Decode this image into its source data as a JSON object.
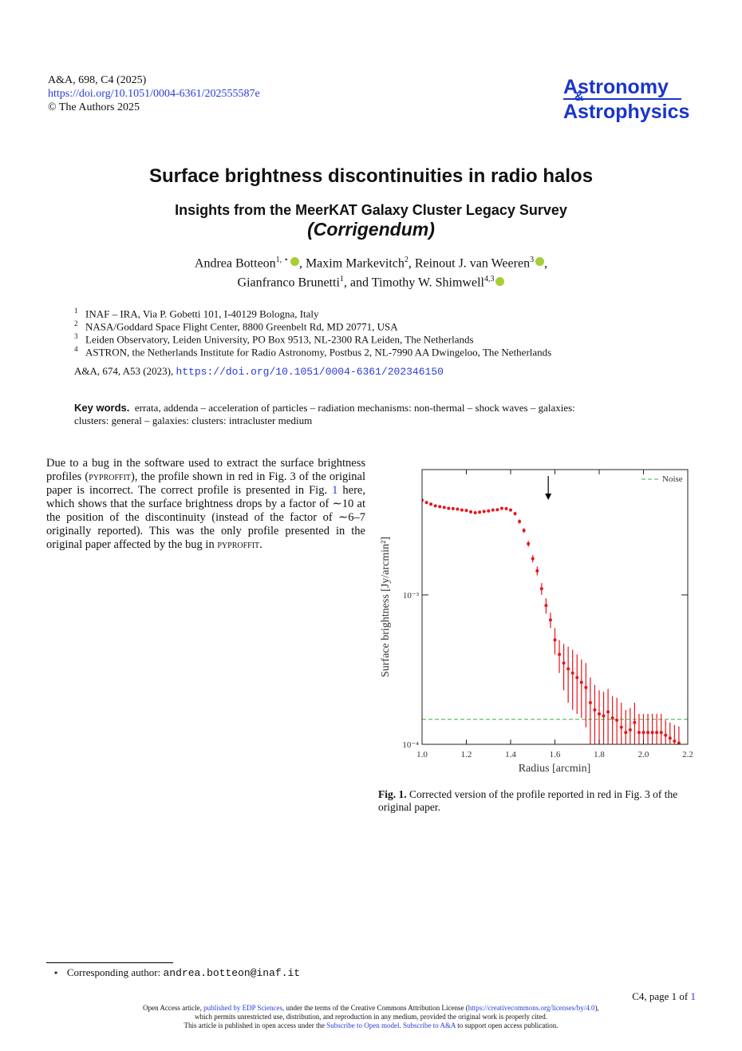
{
  "header": {
    "journal": "A&A, 698, C4 (2025)",
    "doi": "https://doi.org/10.1051/0004-6361/202555587e",
    "copyright": "© The Authors 2025",
    "logo_top": "Astronomy",
    "logo_amp": "&",
    "logo_bottom": "Astrophysics"
  },
  "title": "Surface brightness discontinuities in radio halos",
  "subtitle": "Insights from the MeerKAT Galaxy Cluster Legacy Survey",
  "subtitle2": "(Corrigendum)",
  "authors": [
    {
      "name": "Andrea Botteon",
      "aff": "1, ⋆",
      "after": ","
    },
    {
      "name": "Maxim Markevitch",
      "aff": "2",
      "after": ","
    },
    {
      "name": "Reinout J. van Weeren",
      "aff": "3",
      "after": ","
    },
    {
      "name": "Gianfranco Brunetti",
      "aff": "1",
      "after": ","
    },
    {
      "before": "and",
      "name": "Timothy W. Shimwell",
      "aff": "4,3"
    }
  ],
  "affiliations": [
    {
      "num": "1",
      "text": "INAF – IRA, Via P. Gobetti 101, I-40129 Bologna, Italy"
    },
    {
      "num": "2",
      "text": "NASA/Goddard Space Flight Center, 8800 Greenbelt Rd, MD 20771, USA"
    },
    {
      "num": "3",
      "text": "Leiden Observatory, Leiden University, PO Box 9513, NL-2300 RA Leiden, The Netherlands"
    },
    {
      "num": "4",
      "text": "ASTRON, the Netherlands Institute for Radio Astronomy, Postbus 2, NL-7990 AA Dwingeloo, The Netherlands"
    }
  ],
  "reference": {
    "text": "A&A, 674, A53 (2023),",
    "link": "https://doi.org/10.1051/0004-6361/202346150"
  },
  "keywords": {
    "label": "Key words.",
    "text": "errata, addenda – acceleration of particles – radiation mechanisms: non-thermal – shock waves – galaxies: clusters: general – galaxies: clusters: intracluster medium"
  },
  "body": [
    "Due to a bug in the software used to extract the surface brightness profiles (",
    "pyproffit",
    "), the profile shown in red in Fig. 3 of the original paper is incorrect. The correct profile is presented in Fig. ",
    "1",
    " here, which shows that the surface brightness drops by a factor of ∼10 at the position of the discontinuity (instead of the factor of ∼6–7 originally reported). This was the only profile presented in the original paper affected by the bug in ",
    "pyproffit",
    "."
  ],
  "chart_data": {
    "type": "errorbar",
    "xlabel": "Radius [arcmin]",
    "ylabel": "Surface brightness [Jy/arcmin²]",
    "log_y": true,
    "color": "#e8141b",
    "x": [
      1.0,
      1.02,
      1.04,
      1.06,
      1.08,
      1.1,
      1.12,
      1.14,
      1.16,
      1.18,
      1.2,
      1.22,
      1.24,
      1.26,
      1.28,
      1.3,
      1.32,
      1.34,
      1.36,
      1.38,
      1.4,
      1.42,
      1.44,
      1.46,
      1.48,
      1.5,
      1.52,
      1.54,
      1.56,
      1.58,
      1.6,
      1.62,
      1.64,
      1.66,
      1.68,
      1.7,
      1.72,
      1.74,
      1.76,
      1.78,
      1.8,
      1.82,
      1.84,
      1.86,
      1.88,
      1.9,
      1.92,
      1.94,
      1.96,
      1.98,
      2.0,
      2.02,
      2.04,
      2.06,
      2.08,
      2.1,
      2.12,
      2.14,
      2.16
    ],
    "values": [
      0.0043,
      0.00415,
      0.00405,
      0.00395,
      0.0039,
      0.00385,
      0.0038,
      0.00378,
      0.00375,
      0.0037,
      0.00368,
      0.0036,
      0.00355,
      0.00358,
      0.00362,
      0.00365,
      0.0037,
      0.00372,
      0.0038,
      0.00378,
      0.0037,
      0.0035,
      0.0031,
      0.0027,
      0.0022,
      0.00175,
      0.00145,
      0.0011,
      0.00085,
      0.00068,
      0.0005,
      0.0004,
      0.00035,
      0.00032,
      0.0003,
      0.00028,
      0.00026,
      0.00024,
      0.00019,
      0.00017,
      0.00016,
      0.000155,
      0.000165,
      0.00015,
      0.000145,
      0.00013,
      0.00012,
      0.000125,
      0.00014,
      0.00012,
      0.00012,
      0.00012,
      0.00012,
      0.00012,
      0.00012,
      0.000115,
      0.00011,
      0.000105,
      0.000102
    ],
    "errors": [
      8e-05,
      8e-05,
      8e-05,
      8e-05,
      8e-05,
      8e-05,
      8e-05,
      8e-05,
      8e-05,
      8e-05,
      8e-05,
      8e-05,
      8e-05,
      8e-05,
      8e-05,
      8e-05,
      8e-05,
      8e-05,
      8e-05,
      8e-05,
      8e-05,
      0.0001,
      0.0001,
      0.0001,
      0.0001,
      0.0001,
      0.0001,
      0.0001,
      0.0001,
      8e-05,
      0.0001,
      0.0001,
      0.00012,
      0.00013,
      0.00013,
      0.00012,
      0.00011,
      0.00011,
      9e-05,
      8e-05,
      7e-05,
      7e-05,
      7e-05,
      6e-05,
      6e-05,
      6e-05,
      5e-05,
      5e-05,
      5e-05,
      4e-05,
      4e-05,
      4e-05,
      4e-05,
      4e-05,
      4e-05,
      3e-05,
      3e-05,
      3e-05,
      3e-05
    ],
    "noise": {
      "name": "Noise",
      "value": 0.000147,
      "color": "#3bb33b"
    },
    "arrow_x": 1.57,
    "xlim": [
      1.0,
      2.2
    ],
    "xticks": [
      {
        "value": 1,
        "label": "1.0"
      },
      1.2,
      1.4,
      1.6,
      1.8,
      {
        "value": 2,
        "label": "2.0"
      },
      2.2
    ],
    "ylim": [
      0.0001,
      0.0069
    ],
    "yticks": [
      {
        "value": 0.0001,
        "label": "10⁻⁴"
      },
      {
        "value": 0.001,
        "label": "10⁻³"
      }
    ],
    "legend": "upper right"
  },
  "caption": {
    "label": "Fig. 1.",
    "text": "Corrected version of the profile reported in red in Fig. 3 of the original paper."
  },
  "footnote": {
    "mark": "⋆",
    "text": "Corresponding author:",
    "email": "andrea.botteon@inaf.it"
  },
  "page_number": {
    "text": "C4, page 1 of",
    "link": "1"
  },
  "license": [
    [
      "Open Access article, ",
      "published by EDP Sciences",
      ", under the terms of the Creative Commons Attribution License (",
      "https://creativecommons.org/licenses/by/4.0",
      "),"
    ],
    [
      "which permits unrestricted use, distribution, and reproduction in any medium, provided the original work is properly cited."
    ],
    [
      "This article is published in open access under the ",
      "Subscribe to Open model",
      ". ",
      "Subscribe to A&A",
      " to support open access publication."
    ]
  ]
}
